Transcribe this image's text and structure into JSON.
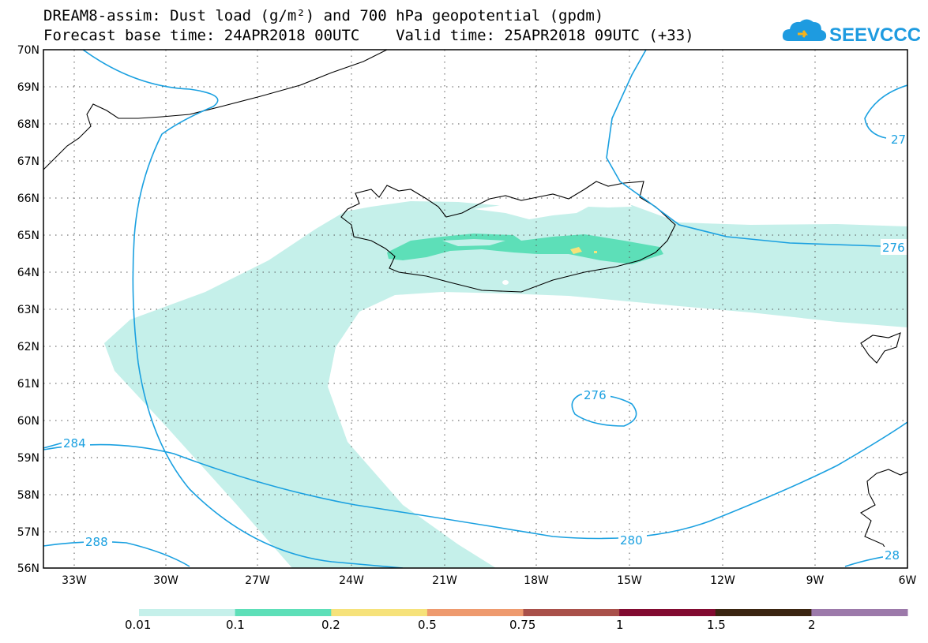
{
  "header": {
    "title_line1": "DREAM8-assim: Dust load (g/m²) and 700 hPa geopotential (gpdm)",
    "title_line2": "Forecast base time: 24APR2018 00UTC    Valid time: 25APR2018 09UTC (+33)"
  },
  "logo": {
    "text": "SEEVCCC",
    "icon": "cloud-icon"
  },
  "map": {
    "region": "Iceland / North Atlantic",
    "lon_labels": [
      "33W",
      "30W",
      "27W",
      "24W",
      "21W",
      "18W",
      "15W",
      "12W",
      "9W",
      "6W"
    ],
    "lat_labels": [
      "56N",
      "57N",
      "58N",
      "59N",
      "60N",
      "61N",
      "62N",
      "63N",
      "64N",
      "65N",
      "66N",
      "67N",
      "68N",
      "69N",
      "70N"
    ],
    "contour_labels": [
      "276",
      "276",
      "27",
      "280",
      "284",
      "288",
      "28"
    ]
  },
  "colorbar": {
    "labels": [
      "0.01",
      "0.1",
      "0.2",
      "0.5",
      "0.75",
      "1",
      "1.5",
      "2"
    ],
    "colors": [
      "#c5f0ea",
      "#5ddfb8",
      "#f6e27a",
      "#ee9a6e",
      "#a9504a",
      "#820b31",
      "#3b2511",
      "#9c79aa"
    ]
  }
}
